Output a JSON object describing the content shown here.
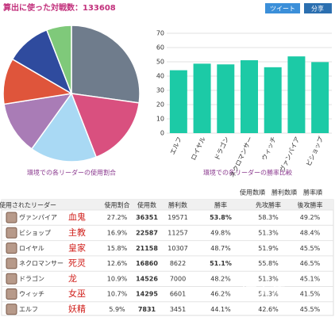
{
  "header": {
    "title": "算出に使った対戦数：133608",
    "buttons": [
      "ツイート",
      "分享"
    ]
  },
  "chart_data": [
    {
      "type": "pie",
      "caption": "環境での各リーダーの使用割合",
      "values": [
        27.2,
        16.9,
        15.8,
        12.6,
        10.9,
        10.7,
        5.9
      ],
      "colors": [
        "#6f7c8c",
        "#d9507f",
        "#a9d9f4",
        "#a97cb6",
        "#df553b",
        "#2f4b9e",
        "#7fc97a"
      ]
    },
    {
      "type": "bar",
      "caption": "環境での各リーダーの勝率比較",
      "categories": [
        "エルフ",
        "ロイヤル",
        "ドラゴン",
        "ネクロマンサー",
        "ウィッチ",
        "ヴァンパイア",
        "ビショップ"
      ],
      "values": [
        44.1,
        48.7,
        48.2,
        51.1,
        46.2,
        53.8,
        49.8
      ],
      "color": "#1ccaa6",
      "ylim": [
        0,
        70
      ],
      "yticks": [
        0,
        10,
        20,
        30,
        40,
        50,
        60,
        70
      ],
      "grid": true
    }
  ],
  "sort_links": [
    "使用数順",
    "勝利数順",
    "勝率順"
  ],
  "table": {
    "columns": [
      "使用されたリーダー",
      "使用割合",
      "使用数",
      "勝利数",
      "勝率",
      "先攻勝率",
      "後攻勝率"
    ],
    "highlight_color": "#e8822a",
    "rows": [
      {
        "name": "ヴァンパイア",
        "note": "血鬼",
        "cells": [
          "27.2%",
          "36351",
          "19571",
          "53.8%",
          "58.3%",
          "49.2%"
        ],
        "highlight": true
      },
      {
        "name": "ビショップ",
        "note": "主教",
        "cells": [
          "16.9%",
          "22587",
          "11257",
          "49.8%",
          "51.3%",
          "48.4%"
        ],
        "highlight": false
      },
      {
        "name": "ロイヤル",
        "note": "皇家",
        "cells": [
          "15.8%",
          "21158",
          "10307",
          "48.7%",
          "51.9%",
          "45.5%"
        ],
        "highlight": false
      },
      {
        "name": "ネクロマンサー",
        "note": "死灵",
        "cells": [
          "12.6%",
          "16860",
          "8622",
          "51.1%",
          "55.8%",
          "46.5%"
        ],
        "highlight": true
      },
      {
        "name": "ドラゴン",
        "note": "龙",
        "cells": [
          "10.9%",
          "14526",
          "7000",
          "48.2%",
          "51.3%",
          "45.1%"
        ],
        "highlight": false
      },
      {
        "name": "ウィッチ",
        "note": "女巫",
        "cells": [
          "10.7%",
          "14295",
          "6601",
          "46.2%",
          "51.3%",
          "41.5%"
        ],
        "highlight": false
      },
      {
        "name": "エルフ",
        "note": "妖精",
        "cells": [
          "5.9%",
          "7831",
          "3451",
          "44.1%",
          "42.6%",
          "45.5%"
        ],
        "highlight": false
      }
    ]
  },
  "watermark": "叶子猪"
}
